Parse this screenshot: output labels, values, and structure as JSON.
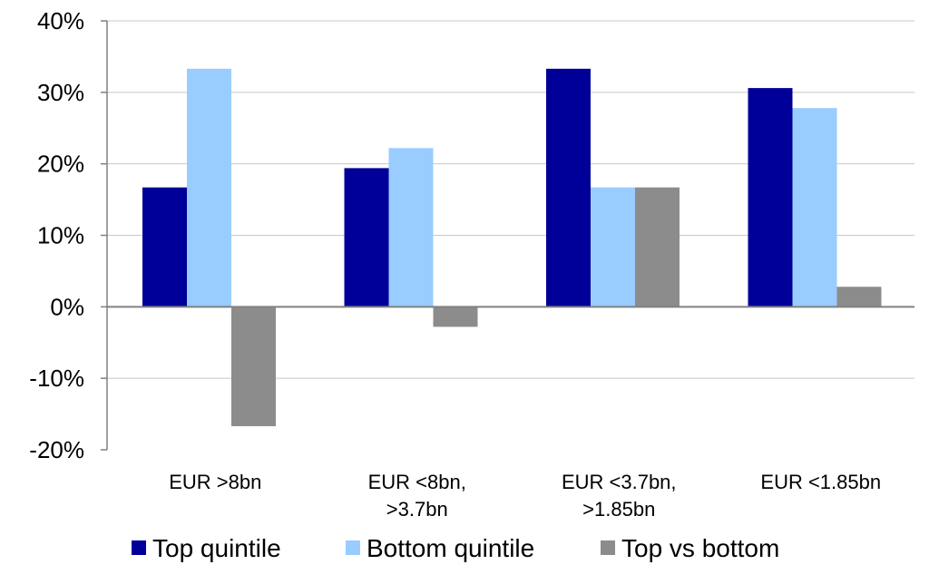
{
  "chart_data": {
    "type": "bar",
    "title": "",
    "xlabel": "",
    "ylabel": "",
    "categories": [
      [
        "EUR >8bn"
      ],
      [
        "EUR <8bn,",
        ">3.7bn"
      ],
      [
        "EUR <3.7bn,",
        ">1.85bn"
      ],
      [
        "EUR <1.85bn"
      ]
    ],
    "series": [
      {
        "name": "Top quintile",
        "color": "#000099",
        "values": [
          16.7,
          19.4,
          33.3,
          30.6
        ]
      },
      {
        "name": "Bottom quintile",
        "color": "#99CCFF",
        "values": [
          33.3,
          22.2,
          16.7,
          27.8
        ]
      },
      {
        "name": "Top vs bottom",
        "color": "#8C8C8C",
        "values": [
          -16.7,
          -2.8,
          16.7,
          2.8
        ]
      }
    ],
    "ylim": [
      -20,
      40
    ],
    "yticks": [
      40,
      30,
      20,
      10,
      0,
      -10,
      -20
    ],
    "ytick_labels": [
      "40%",
      "30%",
      "20%",
      "10%",
      "0%",
      "-10%",
      "-20%"
    ],
    "grid": true,
    "legend_position": "bottom"
  }
}
